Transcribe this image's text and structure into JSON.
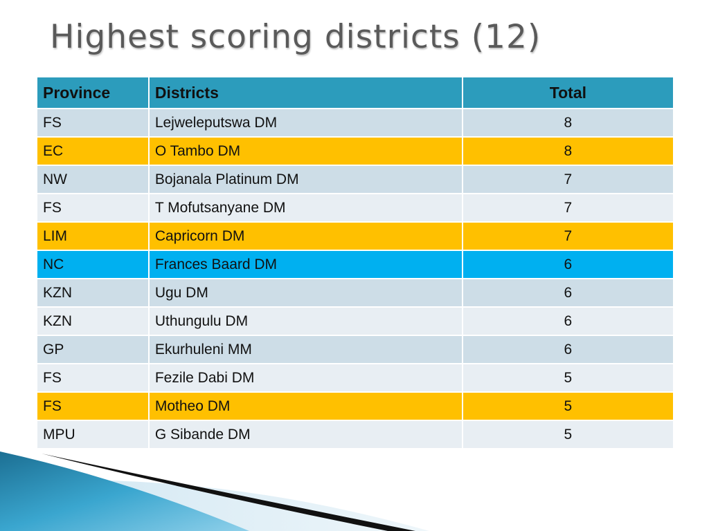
{
  "title": "Highest scoring districts (12)",
  "table": {
    "headers": {
      "province": "Province",
      "districts": "Districts",
      "total": "Total"
    },
    "rows": [
      {
        "province": "FS",
        "district": "Lejweleputswa DM",
        "total": "8",
        "highlight": "none"
      },
      {
        "province": "EC",
        "district": "O Tambo DM",
        "total": "8",
        "highlight": "orange"
      },
      {
        "province": "NW",
        "district": "Bojanala Platinum DM",
        "total": "7",
        "highlight": "none"
      },
      {
        "province": "FS",
        "district": "T Mofutsanyane DM",
        "total": "7",
        "highlight": "none"
      },
      {
        "province": "LIM",
        "district": "Capricorn DM",
        "total": "7",
        "highlight": "orange"
      },
      {
        "province": "NC",
        "district": "Frances Baard DM",
        "total": "6",
        "highlight": "blue"
      },
      {
        "province": "KZN",
        "district": "Ugu DM",
        "total": "6",
        "highlight": "none"
      },
      {
        "province": "KZN",
        "district": "Uthungulu DM",
        "total": "6",
        "highlight": "none"
      },
      {
        "province": "GP",
        "district": "Ekurhuleni MM",
        "total": "6",
        "highlight": "none"
      },
      {
        "province": "FS",
        "district": "Fezile Dabi DM",
        "total": "5",
        "highlight": "none"
      },
      {
        "province": "FS",
        "district": "Motheo DM",
        "total": "5",
        "highlight": "orange"
      },
      {
        "province": "MPU",
        "district": "G Sibande DM",
        "total": "5",
        "highlight": "none"
      }
    ]
  },
  "colors": {
    "header": "#2c9cbc",
    "band_dark": "#cddde7",
    "band_light": "#e8eef3",
    "highlight_orange": "#ffc000",
    "highlight_blue": "#00b0f0"
  }
}
